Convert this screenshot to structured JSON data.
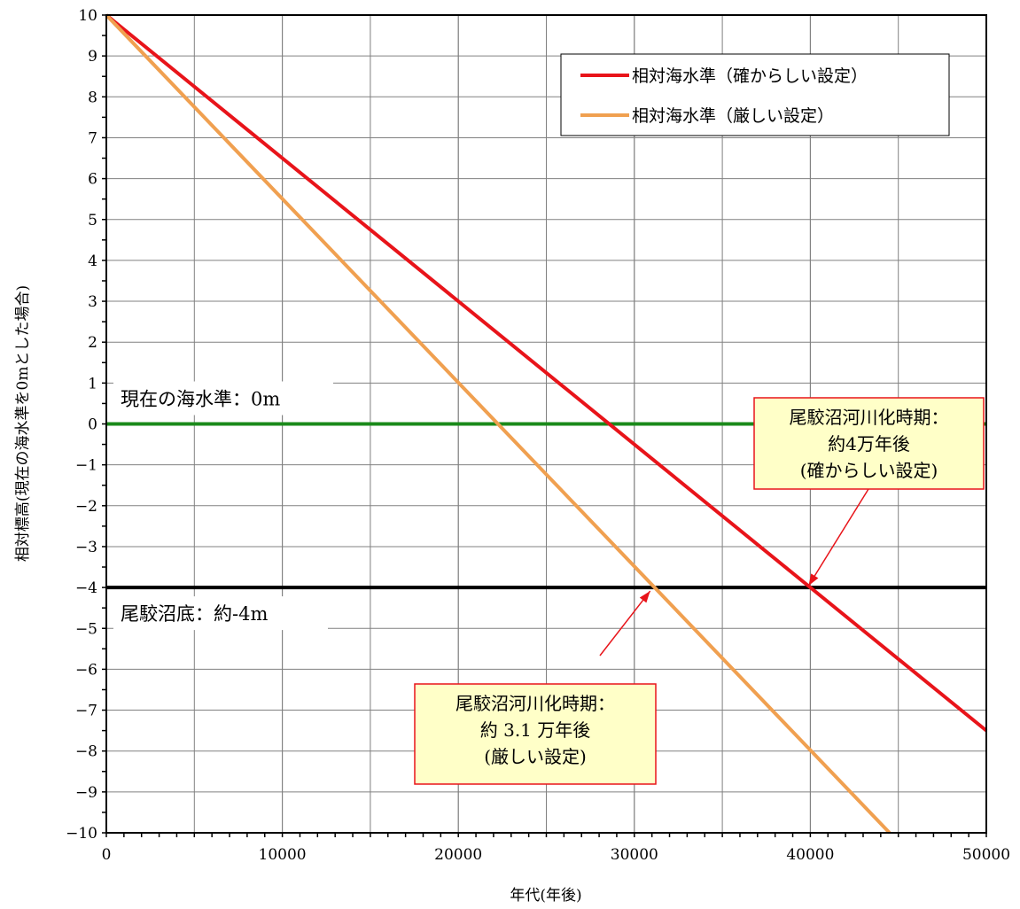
{
  "chart_data": {
    "type": "line",
    "title": "",
    "xlabel": "年代(年後)",
    "ylabel": "相対標高(現在の海水準を0mとした場合)",
    "xlim": [
      0,
      50000
    ],
    "ylim": [
      -10,
      10
    ],
    "x_ticks": [
      0,
      10000,
      20000,
      30000,
      40000,
      50000
    ],
    "x_tick_labels": [
      "0",
      "10000",
      "20000",
      "30000",
      "40000",
      "50000"
    ],
    "y_ticks": [
      10,
      9,
      8,
      7,
      6,
      5,
      4,
      3,
      2,
      1,
      0,
      -1,
      -2,
      -3,
      -4,
      -5,
      -6,
      -7,
      -8,
      -9,
      -10
    ],
    "y_tick_labels": [
      "10",
      "9",
      "8",
      "7",
      "6",
      "5",
      "4",
      "3",
      "2",
      "1",
      "0",
      "−1",
      "−2",
      "−3",
      "−4",
      "−5",
      "−6",
      "−7",
      "−8",
      "−9",
      "−10"
    ],
    "grid": true,
    "legend_position": "top-right",
    "series": [
      {
        "name": "相対海水準（確からしい設定）",
        "color": "#e8141a",
        "x": [
          0,
          50000
        ],
        "y": [
          10,
          -7.5
        ]
      },
      {
        "name": "相対海水準（厳しい設定）",
        "color": "#f0a050",
        "x": [
          0,
          44500
        ],
        "y": [
          10,
          -10
        ]
      }
    ],
    "reference_lines": [
      {
        "y": 0,
        "color": "#1a8a1a",
        "label": "現在の海水準：0m"
      },
      {
        "y": -4,
        "color": "#000000",
        "label": "尾駮沼底：約-4m"
      }
    ],
    "annotations": [
      {
        "lines": [
          "尾駮沼河川化時期：",
          "約4万年後",
          "(確からしい設定)"
        ],
        "point": [
          40000,
          -4
        ]
      },
      {
        "lines": [
          "尾駮沼河川化時期：",
          "約 3.1 万年後",
          "(厳しい設定)"
        ],
        "point": [
          31100,
          -4
        ]
      }
    ]
  },
  "colors": {
    "grid": "#808080",
    "callout_fill": "#ffffc8",
    "callout_border": "#e8141a",
    "arrow": "#e8141a"
  }
}
